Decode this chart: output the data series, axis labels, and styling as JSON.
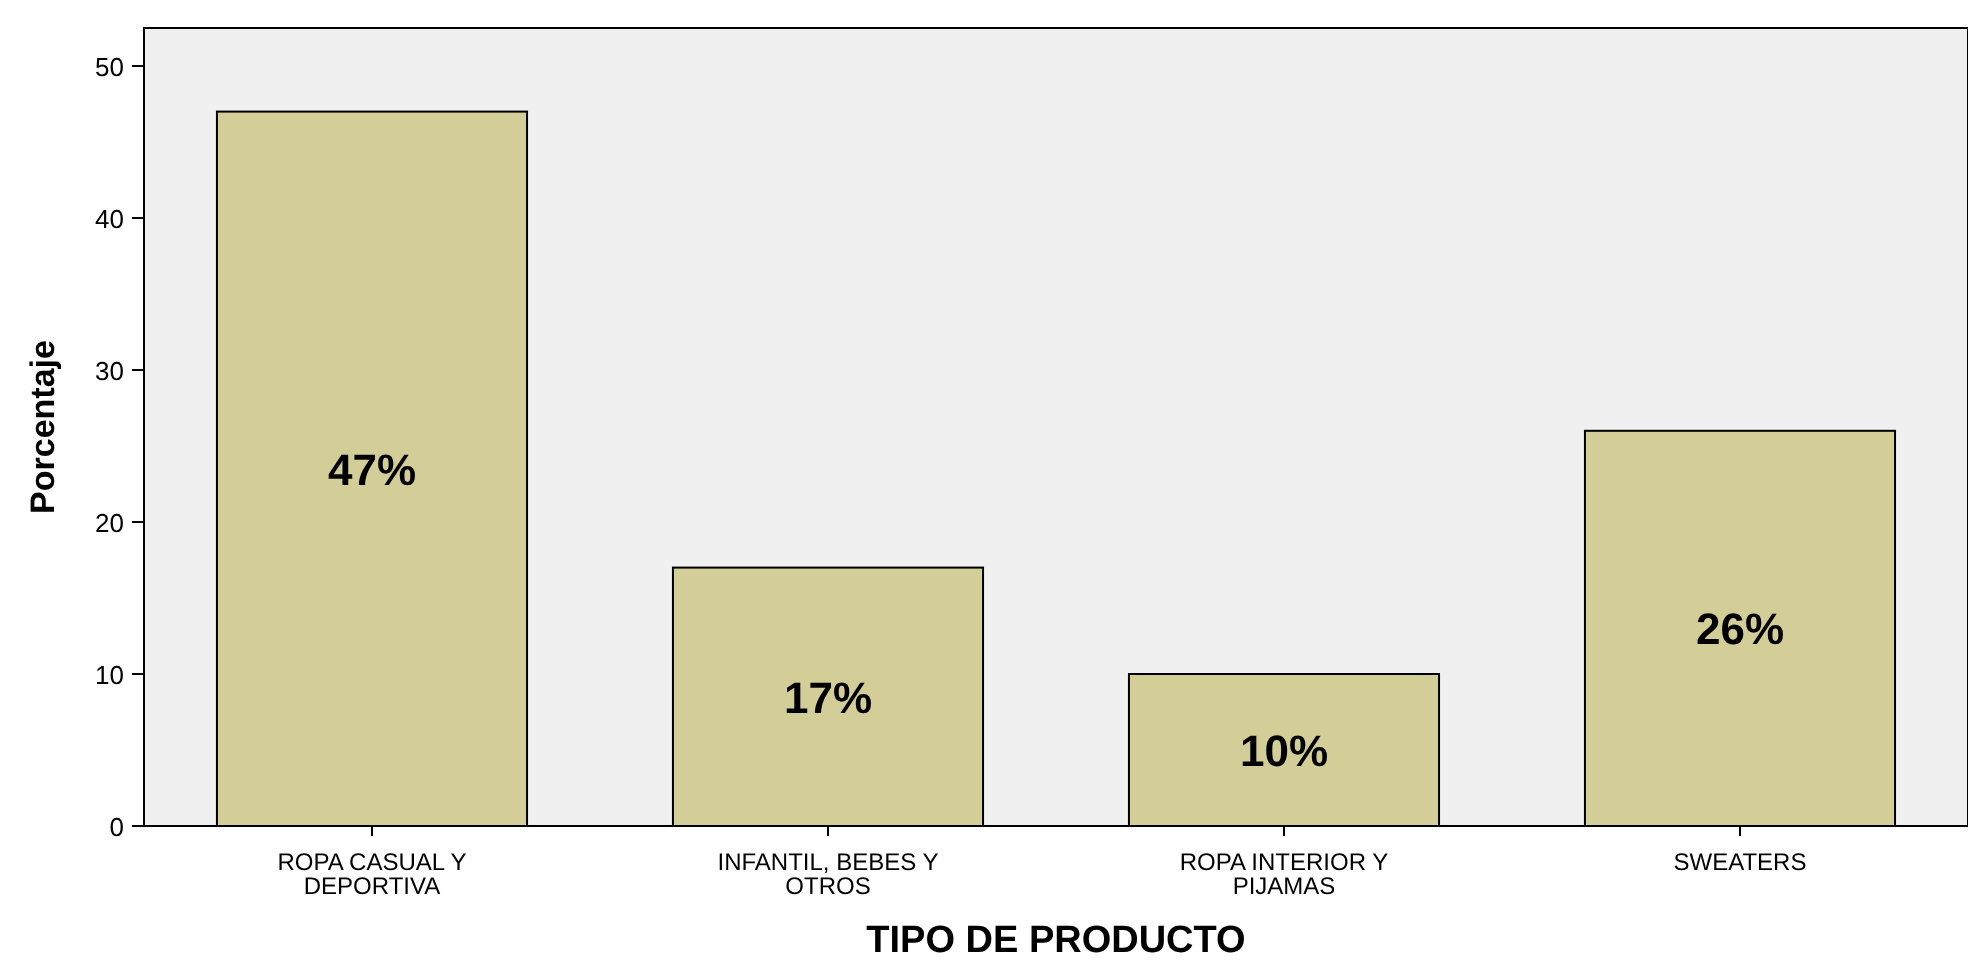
{
  "chart_data": {
    "type": "bar",
    "xlabel": "TIPO DE PRODUCTO",
    "ylabel": "Porcentaje",
    "categories": [
      "ROPA CASUAL Y DEPORTIVA",
      "INFANTIL, BEBES Y OTROS",
      "ROPA INTERIOR Y PIJAMAS",
      "SWEATERS"
    ],
    "values": [
      47,
      17,
      10,
      26
    ],
    "value_labels": [
      "47%",
      "17%",
      "10%",
      "26%"
    ],
    "color": "#d3ce98",
    "ylim": [
      0,
      52.5
    ],
    "yticks": [
      0,
      10,
      20,
      30,
      40,
      50
    ],
    "grid": false
  }
}
